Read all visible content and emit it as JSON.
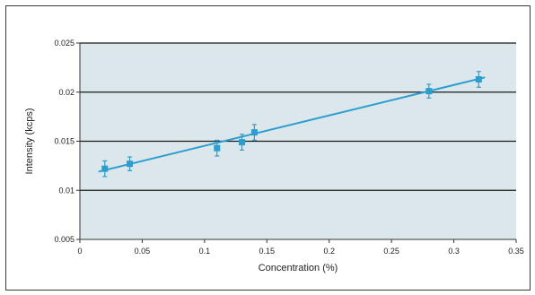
{
  "chart_data": {
    "type": "scatter",
    "title": "",
    "xlabel": "Concentration (%)",
    "ylabel": "Intensity (kcps)",
    "xlim": [
      0,
      0.35
    ],
    "ylim": [
      0.005,
      0.025
    ],
    "x_ticks": [
      0,
      0.05,
      0.1,
      0.15,
      0.2,
      0.25,
      0.3,
      0.35
    ],
    "x_tick_labels": [
      "0",
      "0.05",
      "0.1",
      "0.15",
      "0.2",
      "0.25",
      "0.3",
      "0.35"
    ],
    "y_ticks": [
      0.005,
      0.01,
      0.015,
      0.02,
      0.025
    ],
    "y_tick_labels": [
      "0.005",
      "0.01",
      "0.015",
      "0.02",
      "0.025"
    ],
    "grid": "horizontal",
    "points": [
      {
        "x": 0.02,
        "y": 0.0122,
        "err": 0.0008
      },
      {
        "x": 0.04,
        "y": 0.0127,
        "err": 0.0007
      },
      {
        "x": 0.11,
        "y": 0.0143,
        "err": 0.0008
      },
      {
        "x": 0.13,
        "y": 0.0149,
        "err": 0.0008
      },
      {
        "x": 0.14,
        "y": 0.0159,
        "err": 0.0008
      },
      {
        "x": 0.28,
        "y": 0.0201,
        "err": 0.0007
      },
      {
        "x": 0.32,
        "y": 0.0213,
        "err": 0.0008
      }
    ],
    "fit_line": {
      "x": [
        0.015,
        0.325
      ],
      "y": [
        0.0119,
        0.0215
      ]
    },
    "colors": {
      "plot_background": "#dce7ec",
      "marker": "#2b9ed0",
      "fit_line": "#2b9ed0",
      "gridline": "#1a1a1a"
    }
  }
}
